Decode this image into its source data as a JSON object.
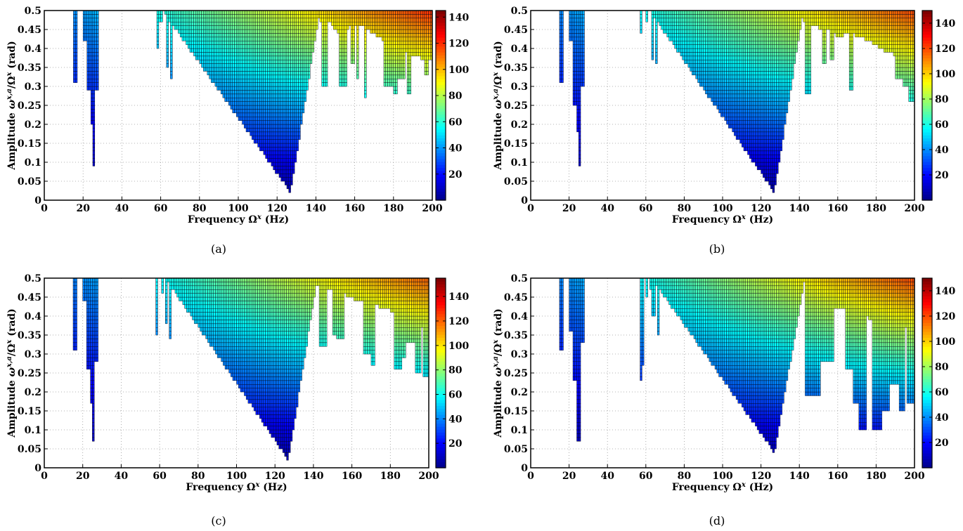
{
  "figure": {
    "xlabel_prefix": "Frequency ",
    "xlabel_symbol": "Ω",
    "xlabel_sup": "x",
    "xlabel_suffix": " (Hz)",
    "ylabel_prefix": "Amplitude ",
    "ylabel_symbol1": "ω",
    "ylabel_sup1": "x,a",
    "ylabel_mid": "/Ω",
    "ylabel_sup2": "x",
    "ylabel_suffix": " (rad)",
    "colormap": [
      "#00008f",
      "#0000ff",
      "#0080ff",
      "#00ffff",
      "#80ff80",
      "#ffff00",
      "#ff8000",
      "#ff0000",
      "#800000"
    ]
  },
  "chart_data": [
    {
      "type": "heatmap",
      "caption": "(a)",
      "xlim": [
        0,
        200
      ],
      "ylim": [
        0,
        0.5
      ],
      "clim": [
        0,
        145
      ],
      "grid": true,
      "xticks": [
        "0",
        "20",
        "40",
        "60",
        "80",
        "100",
        "120",
        "140",
        "160",
        "180",
        "200"
      ],
      "yticks": [
        "0",
        "0.05",
        "0.1",
        "0.15",
        "0.2",
        "0.25",
        "0.3",
        "0.35",
        "0.4",
        "0.45",
        "0.5"
      ],
      "cticks": [
        "20",
        "40",
        "60",
        "80",
        "100",
        "120",
        "140"
      ],
      "stable_region": {
        "narrow_bands": [
          {
            "x0": 15.5,
            "x1": 17,
            "ymin": 0.31
          },
          {
            "x0": 20,
            "x1": 22,
            "ymin": 0.42
          },
          {
            "x0": 22,
            "x1": 24,
            "ymin": 0.29
          },
          {
            "x0": 24,
            "x1": 25,
            "ymin": 0.2
          },
          {
            "x0": 25,
            "x1": 26,
            "ymin": 0.09
          },
          {
            "x0": 26,
            "x1": 28.5,
            "ymin": 0.29
          },
          {
            "x0": 58,
            "x1": 59,
            "ymin": 0.4
          },
          {
            "x0": 59,
            "x1": 61,
            "ymin": 0.47
          },
          {
            "x0": 63,
            "x1": 64,
            "ymin": 0.35
          },
          {
            "x0": 65,
            "x1": 66.5,
            "ymin": 0.32
          }
        ],
        "main_valley": {
          "x0": 61,
          "x1": 142,
          "xmin": 127,
          "ymin": 0.02
        },
        "right_edge": [
          {
            "x": 142,
            "y": 0.47
          },
          {
            "x": 148,
            "y": 0.47
          },
          {
            "x": 150,
            "y": 0.45
          },
          {
            "x": 152,
            "y": 0.44
          },
          {
            "x": 155,
            "y": 0.45
          },
          {
            "x": 158,
            "y": 0.46
          },
          {
            "x": 164,
            "y": 0.46
          },
          {
            "x": 170,
            "y": 0.44
          },
          {
            "x": 175,
            "y": 0.42
          },
          {
            "x": 180,
            "y": 0.41
          },
          {
            "x": 186,
            "y": 0.39
          },
          {
            "x": 192,
            "y": 0.38
          },
          {
            "x": 196,
            "y": 0.37
          },
          {
            "x": 200,
            "y": 0.37
          }
        ],
        "fingers": [
          {
            "x0": 143,
            "x1": 146,
            "ymin": 0.3
          },
          {
            "x0": 152,
            "x1": 156,
            "ymin": 0.3
          },
          {
            "x0": 158,
            "x1": 160,
            "ymin": 0.36
          },
          {
            "x0": 161,
            "x1": 162,
            "ymin": 0.32
          },
          {
            "x0": 165,
            "x1": 166.5,
            "ymin": 0.27
          },
          {
            "x0": 175,
            "x1": 180,
            "ymin": 0.3
          },
          {
            "x0": 180,
            "x1": 182,
            "ymin": 0.28
          },
          {
            "x0": 182,
            "x1": 186,
            "ymin": 0.32
          },
          {
            "x0": 187,
            "x1": 189,
            "ymin": 0.28
          },
          {
            "x0": 196,
            "x1": 198,
            "ymin": 0.33
          }
        ]
      }
    },
    {
      "type": "heatmap",
      "caption": "(b)",
      "xlim": [
        0,
        200
      ],
      "ylim": [
        0,
        0.5
      ],
      "clim": [
        0,
        150
      ],
      "grid": true,
      "xticks": [
        "0",
        "20",
        "40",
        "60",
        "80",
        "100",
        "120",
        "140",
        "160",
        "180",
        "200"
      ],
      "yticks": [
        "0",
        "0.05",
        "0.1",
        "0.15",
        "0.2",
        "0.25",
        "0.3",
        "0.35",
        "0.4",
        "0.45",
        "0.5"
      ],
      "cticks": [
        "20",
        "40",
        "60",
        "80",
        "100",
        "120",
        "140"
      ],
      "stable_region": {
        "narrow_bands": [
          {
            "x0": 15.5,
            "x1": 17,
            "ymin": 0.31
          },
          {
            "x0": 20,
            "x1": 22,
            "ymin": 0.42
          },
          {
            "x0": 22,
            "x1": 24,
            "ymin": 0.25
          },
          {
            "x0": 24,
            "x1": 25,
            "ymin": 0.18
          },
          {
            "x0": 25,
            "x1": 26,
            "ymin": 0.09
          },
          {
            "x0": 26,
            "x1": 28.5,
            "ymin": 0.3
          },
          {
            "x0": 57,
            "x1": 58,
            "ymin": 0.44
          },
          {
            "x0": 60,
            "x1": 61,
            "ymin": 0.47
          },
          {
            "x0": 63,
            "x1": 64,
            "ymin": 0.37
          },
          {
            "x0": 65,
            "x1": 66.5,
            "ymin": 0.36
          }
        ],
        "main_valley": {
          "x0": 62,
          "x1": 142,
          "xmin": 127,
          "ymin": 0.02
        },
        "right_edge": [
          {
            "x": 142,
            "y": 0.47
          },
          {
            "x": 148,
            "y": 0.46
          },
          {
            "x": 152,
            "y": 0.45
          },
          {
            "x": 156,
            "y": 0.45
          },
          {
            "x": 160,
            "y": 0.43
          },
          {
            "x": 166,
            "y": 0.44
          },
          {
            "x": 172,
            "y": 0.43
          },
          {
            "x": 180,
            "y": 0.41
          },
          {
            "x": 186,
            "y": 0.39
          },
          {
            "x": 192,
            "y": 0.38
          },
          {
            "x": 200,
            "y": 0.37
          }
        ],
        "fingers": [
          {
            "x0": 143,
            "x1": 146,
            "ymin": 0.28
          },
          {
            "x0": 152,
            "x1": 154,
            "ymin": 0.36
          },
          {
            "x0": 156,
            "x1": 158,
            "ymin": 0.37
          },
          {
            "x0": 166,
            "x1": 168,
            "ymin": 0.29
          },
          {
            "x0": 190,
            "x1": 194,
            "ymin": 0.32
          },
          {
            "x0": 194,
            "x1": 197,
            "ymin": 0.3
          },
          {
            "x0": 197,
            "x1": 200,
            "ymin": 0.26
          }
        ]
      }
    },
    {
      "type": "heatmap",
      "caption": "(c)",
      "xlim": [
        0,
        200
      ],
      "ylim": [
        0,
        0.5
      ],
      "clim": [
        0,
        155
      ],
      "grid": true,
      "xticks": [
        "0",
        "20",
        "40",
        "60",
        "80",
        "100",
        "120",
        "140",
        "160",
        "180",
        "200"
      ],
      "yticks": [
        "0",
        "0.05",
        "0.1",
        "0.15",
        "0.2",
        "0.25",
        "0.3",
        "0.35",
        "0.4",
        "0.45",
        "0.5"
      ],
      "cticks": [
        "20",
        "40",
        "60",
        "80",
        "100",
        "120",
        "140"
      ],
      "stable_region": {
        "narrow_bands": [
          {
            "x0": 15.5,
            "x1": 17,
            "ymin": 0.31
          },
          {
            "x0": 20,
            "x1": 22,
            "ymin": 0.44
          },
          {
            "x0": 22,
            "x1": 24,
            "ymin": 0.26
          },
          {
            "x0": 24,
            "x1": 25,
            "ymin": 0.17
          },
          {
            "x0": 25,
            "x1": 26,
            "ymin": 0.07
          },
          {
            "x0": 26,
            "x1": 28.5,
            "ymin": 0.28
          },
          {
            "x0": 58,
            "x1": 59,
            "ymin": 0.35
          },
          {
            "x0": 61,
            "x1": 62,
            "ymin": 0.46
          },
          {
            "x0": 63,
            "x1": 64,
            "ymin": 0.38
          },
          {
            "x0": 65,
            "x1": 66.5,
            "ymin": 0.34
          }
        ],
        "main_valley": {
          "x0": 63,
          "x1": 142,
          "xmin": 127,
          "ymin": 0.02
        },
        "right_edge": [
          {
            "x": 142,
            "y": 0.48
          },
          {
            "x": 148,
            "y": 0.47
          },
          {
            "x": 154,
            "y": 0.47
          },
          {
            "x": 158,
            "y": 0.45
          },
          {
            "x": 164,
            "y": 0.44
          },
          {
            "x": 170,
            "y": 0.43
          },
          {
            "x": 178,
            "y": 0.42
          },
          {
            "x": 186,
            "y": 0.4
          },
          {
            "x": 192,
            "y": 0.39
          },
          {
            "x": 196,
            "y": 0.37
          },
          {
            "x": 200,
            "y": 0.37
          }
        ],
        "fingers": [
          {
            "x0": 143,
            "x1": 147,
            "ymin": 0.32
          },
          {
            "x0": 150,
            "x1": 152,
            "ymin": 0.35
          },
          {
            "x0": 152,
            "x1": 156,
            "ymin": 0.34
          },
          {
            "x0": 166,
            "x1": 170,
            "ymin": 0.3
          },
          {
            "x0": 170,
            "x1": 172,
            "ymin": 0.27
          },
          {
            "x0": 182,
            "x1": 186,
            "ymin": 0.26
          },
          {
            "x0": 186,
            "x1": 188,
            "ymin": 0.29
          },
          {
            "x0": 188,
            "x1": 193,
            "ymin": 0.33
          },
          {
            "x0": 193,
            "x1": 196,
            "ymin": 0.25
          },
          {
            "x0": 197,
            "x1": 200,
            "ymin": 0.24
          }
        ]
      }
    },
    {
      "type": "heatmap",
      "caption": "(d)",
      "xlim": [
        0,
        200
      ],
      "ylim": [
        0,
        0.5
      ],
      "clim": [
        0,
        150
      ],
      "grid": true,
      "xticks": [
        "0",
        "20",
        "40",
        "60",
        "80",
        "100",
        "120",
        "140",
        "160",
        "180",
        "200"
      ],
      "yticks": [
        "0",
        "0.05",
        "0.1",
        "0.15",
        "0.2",
        "0.25",
        "0.3",
        "0.35",
        "0.4",
        "0.45",
        "0.5"
      ],
      "cticks": [
        "20",
        "40",
        "60",
        "80",
        "100",
        "120",
        "140"
      ],
      "stable_region": {
        "narrow_bands": [
          {
            "x0": 15.5,
            "x1": 17,
            "ymin": 0.31
          },
          {
            "x0": 20,
            "x1": 22,
            "ymin": 0.36
          },
          {
            "x0": 22,
            "x1": 24,
            "ymin": 0.23
          },
          {
            "x0": 24,
            "x1": 26,
            "ymin": 0.07
          },
          {
            "x0": 26,
            "x1": 28.5,
            "ymin": 0.33
          },
          {
            "x0": 57,
            "x1": 58,
            "ymin": 0.23
          },
          {
            "x0": 58,
            "x1": 59,
            "ymin": 0.27
          },
          {
            "x0": 60,
            "x1": 61,
            "ymin": 0.45
          },
          {
            "x0": 62,
            "x1": 63,
            "ymin": 0.47
          },
          {
            "x0": 63,
            "x1": 65,
            "ymin": 0.4
          },
          {
            "x0": 66,
            "x1": 67,
            "ymin": 0.35
          }
        ],
        "main_valley": {
          "x0": 63,
          "x1": 143,
          "xmin": 127,
          "ymin": 0.04
        },
        "right_edge": [
          {
            "x": 143,
            "y": 0.45
          },
          {
            "x": 150,
            "y": 0.44
          },
          {
            "x": 156,
            "y": 0.43
          },
          {
            "x": 160,
            "y": 0.42
          },
          {
            "x": 166,
            "y": 0.42
          },
          {
            "x": 172,
            "y": 0.4
          },
          {
            "x": 180,
            "y": 0.39
          },
          {
            "x": 186,
            "y": 0.38
          },
          {
            "x": 194,
            "y": 0.37
          },
          {
            "x": 200,
            "y": 0.37
          }
        ],
        "fingers": [
          {
            "x0": 143,
            "x1": 151,
            "ymin": 0.19
          },
          {
            "x0": 151,
            "x1": 158,
            "ymin": 0.28
          },
          {
            "x0": 164,
            "x1": 168,
            "ymin": 0.26
          },
          {
            "x0": 168,
            "x1": 171,
            "ymin": 0.17
          },
          {
            "x0": 171,
            "x1": 175,
            "ymin": 0.1
          },
          {
            "x0": 178,
            "x1": 183,
            "ymin": 0.1
          },
          {
            "x0": 183,
            "x1": 187,
            "ymin": 0.15
          },
          {
            "x0": 187,
            "x1": 192,
            "ymin": 0.22
          },
          {
            "x0": 192,
            "x1": 195,
            "ymin": 0.15
          },
          {
            "x0": 196,
            "x1": 200,
            "ymin": 0.17
          }
        ]
      }
    }
  ]
}
